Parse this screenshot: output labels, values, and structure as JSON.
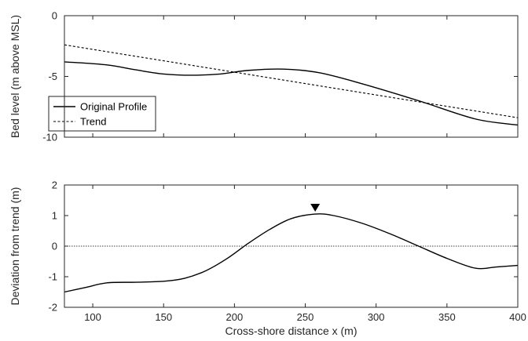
{
  "chart_data": [
    {
      "type": "line",
      "ylabel": "Bed level (m above MSL)",
      "xlim": [
        80,
        400
      ],
      "ylim": [
        -10,
        0
      ],
      "xticks": [
        100,
        150,
        200,
        250,
        300,
        350,
        400
      ],
      "yticks": [
        0,
        -5,
        -10
      ],
      "show_x_tick_labels": false,
      "grid": false,
      "legend_position": "bottom-left",
      "series": [
        {
          "name": "Original Profile",
          "style": "solid",
          "color": "#000000",
          "x": [
            80,
            110,
            130,
            150,
            170,
            190,
            210,
            235,
            260,
            290,
            330,
            370,
            400
          ],
          "y": [
            -3.8,
            -4.05,
            -4.45,
            -4.8,
            -4.9,
            -4.8,
            -4.5,
            -4.4,
            -4.7,
            -5.6,
            -7.0,
            -8.5,
            -9.0
          ]
        },
        {
          "name": "Trend",
          "style": "dashed",
          "color": "#000000",
          "x": [
            80,
            400
          ],
          "y": [
            -2.4,
            -8.4
          ]
        }
      ]
    },
    {
      "type": "line",
      "xlabel": "Cross-shore distance x (m)",
      "ylabel": "Deviation from trend (m)",
      "xlim": [
        80,
        400
      ],
      "ylim": [
        -2,
        2
      ],
      "xticks": [
        100,
        150,
        200,
        250,
        300,
        350,
        400
      ],
      "yticks": [
        2,
        1,
        0,
        -1,
        -2
      ],
      "grid": false,
      "zero_line": {
        "y": 0,
        "style": "dotted"
      },
      "series": [
        {
          "style": "solid",
          "color": "#000000",
          "x": [
            80,
            95,
            110,
            130,
            150,
            165,
            180,
            195,
            210,
            225,
            240,
            257,
            270,
            290,
            310,
            330,
            350,
            370,
            385,
            400
          ],
          "y": [
            -1.5,
            -1.35,
            -1.2,
            -1.18,
            -1.15,
            -1.05,
            -0.8,
            -0.4,
            0.1,
            0.55,
            0.9,
            1.05,
            1.0,
            0.75,
            0.4,
            0.0,
            -0.4,
            -0.72,
            -0.68,
            -0.63
          ]
        }
      ],
      "marker": {
        "x": 257,
        "y": 1.05,
        "shape": "triangle-down",
        "color": "#000000"
      }
    }
  ]
}
